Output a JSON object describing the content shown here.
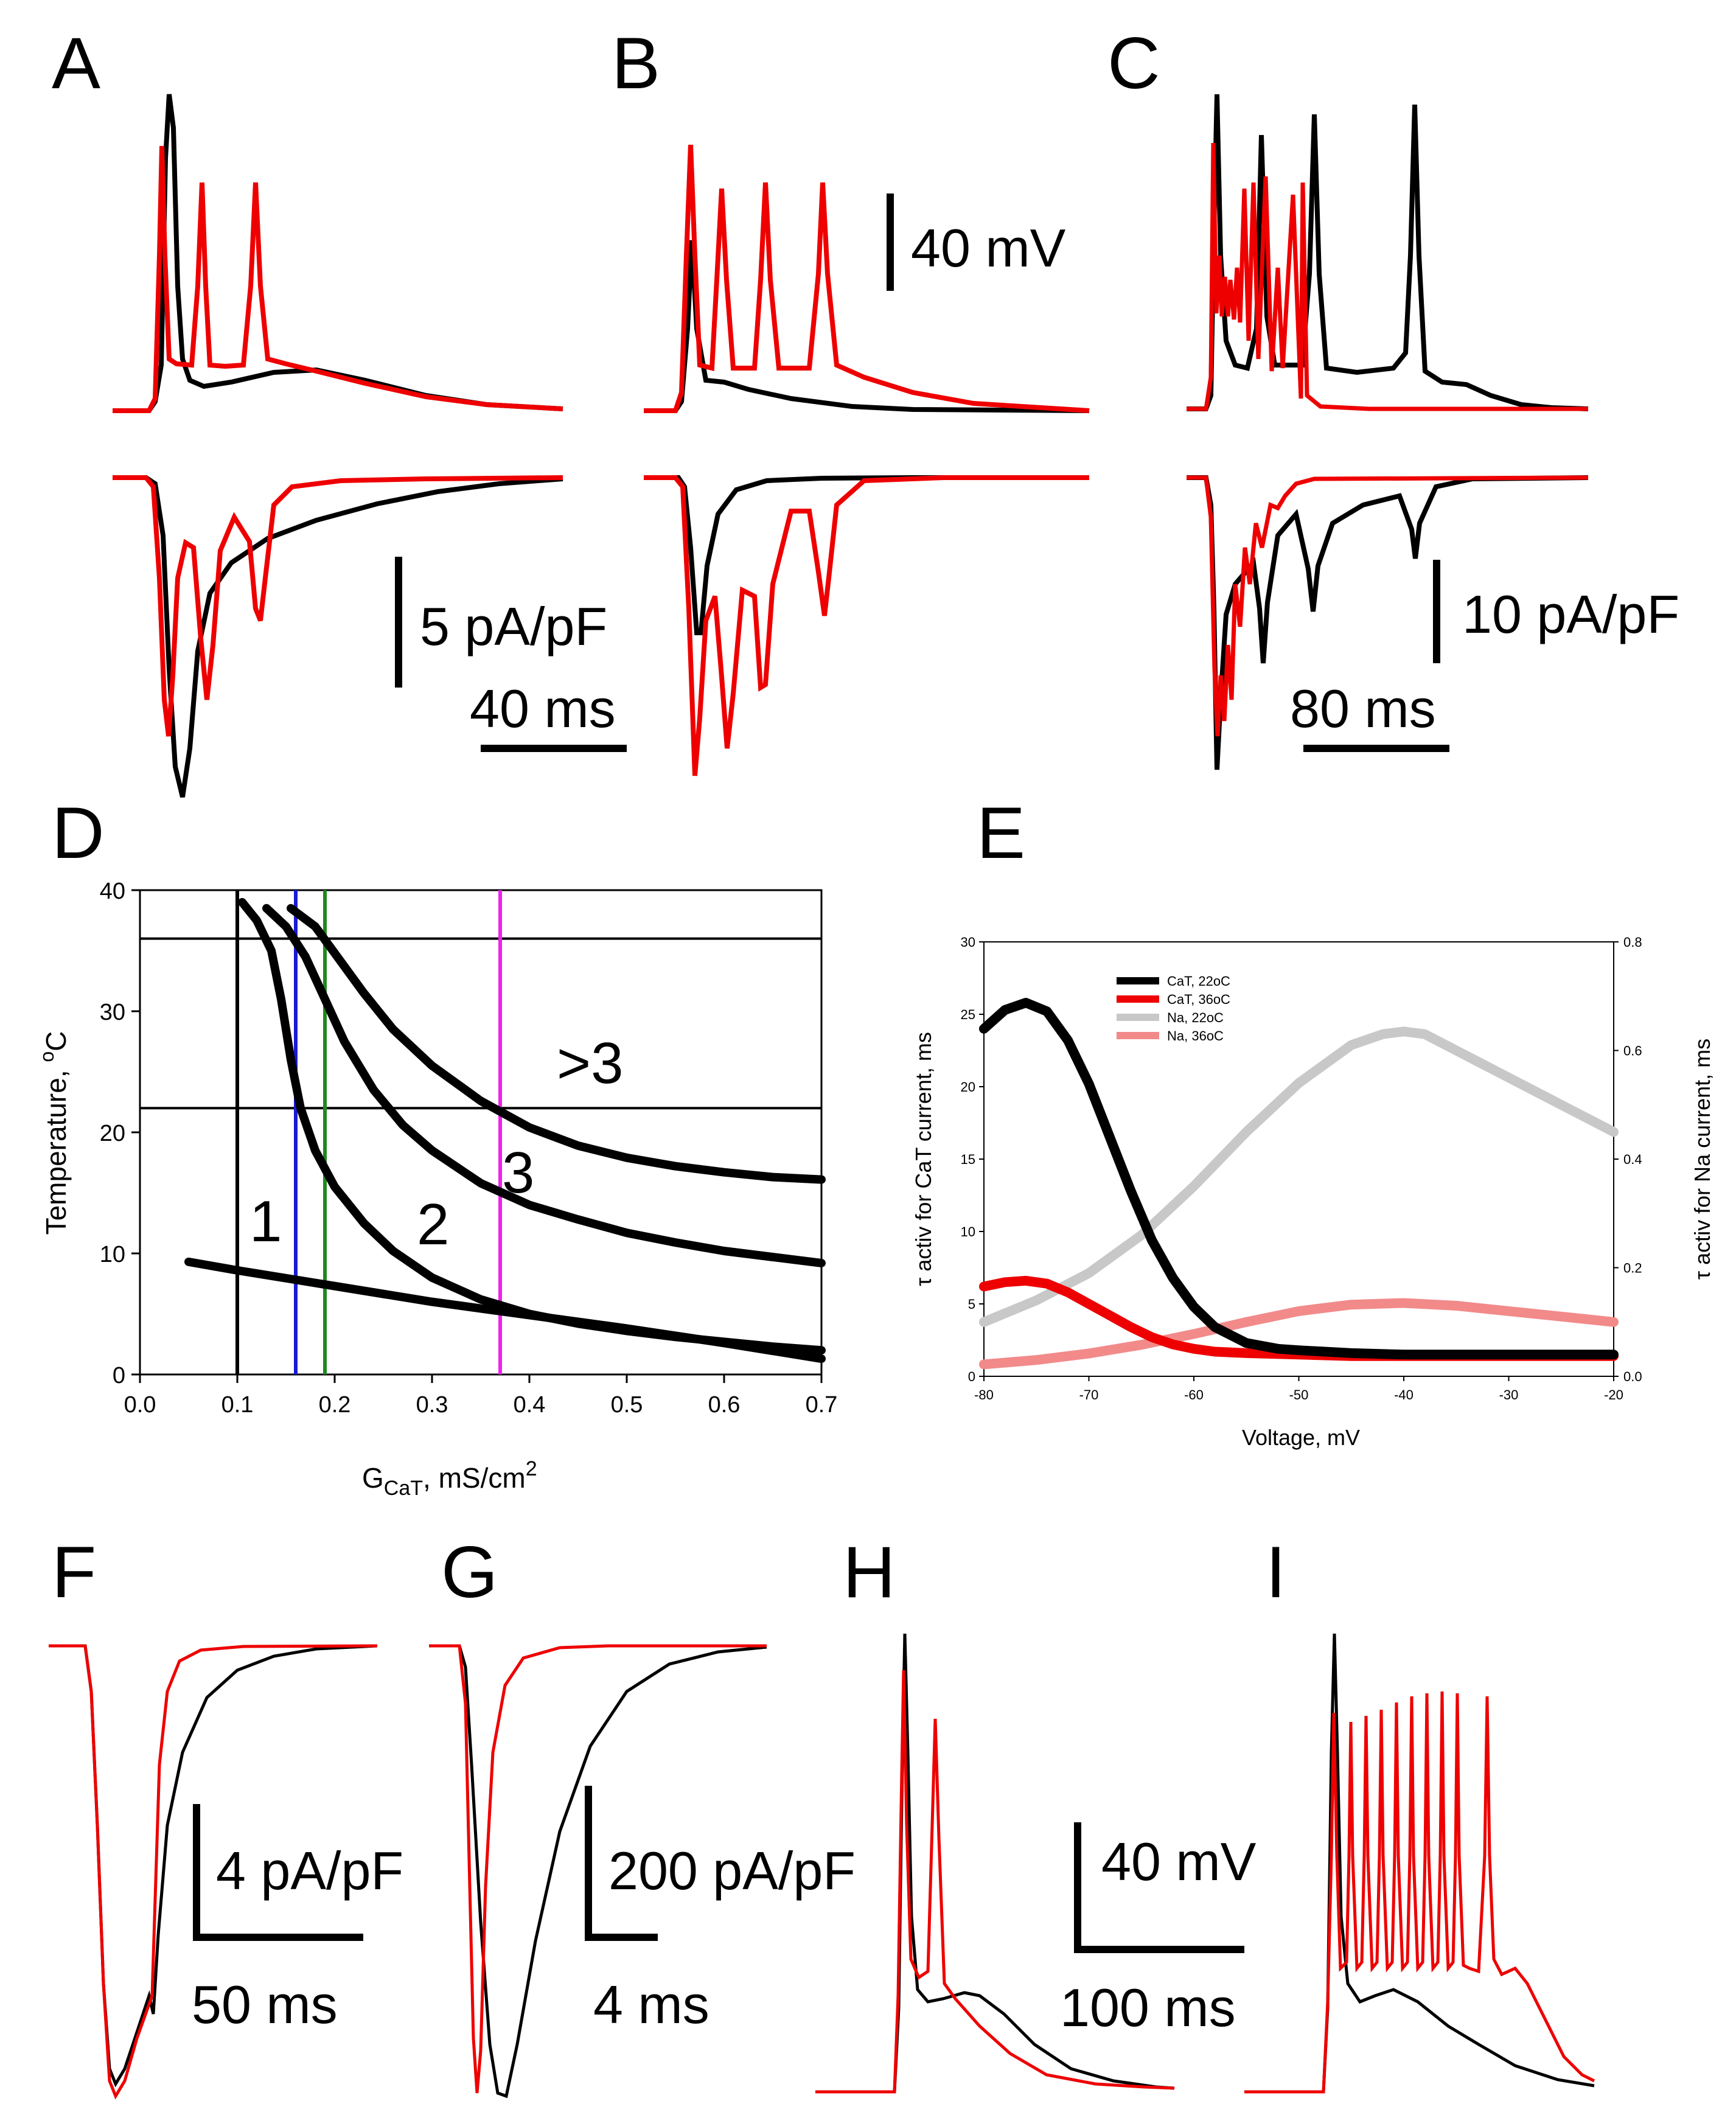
{
  "colors": {
    "control": "#000000",
    "warm": "#ee0000",
    "blue_line": "#1a1ad6",
    "green_line": "#1d8a1d",
    "magenta_line": "#ee22ee",
    "na22": "#c8c8c8",
    "na36": "#f28a8a"
  },
  "panels": {
    "A": {
      "label": "A",
      "current_scale": "5 pA/pF",
      "time_scale": "40 ms"
    },
    "B": {
      "label": "B",
      "voltage_scale": "40 mV"
    },
    "C": {
      "label": "C",
      "current_scale": "10 pA/pF",
      "time_scale": "80 ms"
    },
    "F": {
      "label": "F",
      "current_scale": "4 pA/pF",
      "time_scale": "50 ms"
    },
    "G": {
      "label": "G",
      "current_scale": "200 pA/pF",
      "time_scale": "4 ms"
    },
    "H": {
      "label": "H",
      "voltage_scale": "40 mV",
      "time_scale": "100 ms"
    },
    "I": {
      "label": "I"
    }
  },
  "chart_data": [
    {
      "panel": "D",
      "label": "D",
      "type": "line",
      "xlabel_main": "G",
      "xlabel_sub": "CaT",
      "xlabel_rest": ", mS/cm",
      "xlabel_sup": "2",
      "ylabel_main": "Temperature, ",
      "ylabel_sup": "o",
      "ylabel_rest": "C",
      "xlim": [
        0.0,
        0.7
      ],
      "ylim": [
        0,
        40
      ],
      "xticks": [
        "0.0",
        "0.1",
        "0.2",
        "0.3",
        "0.4",
        "0.5",
        "0.6",
        "0.7"
      ],
      "yticks": [
        "0",
        "10",
        "20",
        "30",
        "40"
      ],
      "region_labels": [
        "1",
        "2",
        "3",
        ">3"
      ],
      "horizontal_lines": [
        36,
        22
      ],
      "vertical_lines": [
        0.1,
        0.16,
        0.19,
        0.37
      ],
      "boundaries": [
        {
          "name": "lower boundary",
          "x": [
            0.05,
            0.1,
            0.2,
            0.3,
            0.4,
            0.5,
            0.6,
            0.7
          ],
          "y": [
            9.3,
            8.6,
            7.3,
            6.0,
            4.9,
            3.8,
            2.6,
            1.3
          ]
        },
        {
          "name": "1-2 boundary",
          "x": [
            0.105,
            0.12,
            0.135,
            0.145,
            0.155,
            0.165,
            0.18,
            0.2,
            0.23,
            0.26,
            0.3,
            0.35,
            0.4,
            0.45,
            0.5,
            0.55,
            0.6,
            0.65,
            0.7
          ],
          "y": [
            39,
            37.5,
            35,
            31,
            26,
            22,
            18.5,
            15.5,
            12.5,
            10.2,
            8.0,
            6.2,
            5.0,
            4.2,
            3.6,
            3.1,
            2.7,
            2.3,
            2.0
          ]
        },
        {
          "name": "2-3 boundary",
          "x": [
            0.13,
            0.15,
            0.17,
            0.19,
            0.21,
            0.24,
            0.27,
            0.3,
            0.35,
            0.4,
            0.45,
            0.5,
            0.55,
            0.6,
            0.65,
            0.7
          ],
          "y": [
            38.5,
            37,
            34.5,
            31,
            27.5,
            23.5,
            20.6,
            18.5,
            15.8,
            14.0,
            12.8,
            11.7,
            10.9,
            10.2,
            9.7,
            9.2
          ]
        },
        {
          "name": "3->3 boundary",
          "x": [
            0.155,
            0.18,
            0.2,
            0.23,
            0.26,
            0.3,
            0.35,
            0.4,
            0.45,
            0.5,
            0.55,
            0.6,
            0.65,
            0.7
          ],
          "y": [
            38.5,
            37,
            34.8,
            31.5,
            28.5,
            25.5,
            22.6,
            20.4,
            18.9,
            17.9,
            17.2,
            16.7,
            16.3,
            16.1
          ]
        }
      ]
    },
    {
      "panel": "E",
      "label": "E",
      "type": "line",
      "xlabel": "Voltage, mV",
      "ylabel_left": "τ activ for CaT current, ms",
      "ylabel_right": "τ activ for Na current, ms",
      "xlim": [
        -80,
        -20
      ],
      "ylim_left": [
        0,
        30
      ],
      "ylim_right": [
        0,
        0.8
      ],
      "xticks": [
        "-80",
        "-70",
        "-60",
        "-50",
        "-40",
        "-30",
        "-20"
      ],
      "yticks_left": [
        "0",
        "5",
        "10",
        "15",
        "20",
        "25",
        "30"
      ],
      "yticks_right": [
        "0.0",
        "0.2",
        "0.4",
        "0.6",
        "0.8"
      ],
      "series": [
        {
          "name": "CaT, 22oC",
          "axis": "left",
          "x": [
            -80,
            -78,
            -76,
            -74,
            -72,
            -70,
            -68,
            -66,
            -64,
            -62,
            -60,
            -58,
            -55,
            -52,
            -50,
            -45,
            -40,
            -35,
            -30,
            -25,
            -20
          ],
          "y": [
            24,
            25.3,
            25.8,
            25.2,
            23.2,
            20.2,
            16.5,
            12.8,
            9.4,
            6.8,
            4.8,
            3.4,
            2.3,
            1.9,
            1.8,
            1.6,
            1.5,
            1.5,
            1.5,
            1.5,
            1.5
          ]
        },
        {
          "name": "CaT, 36oC",
          "axis": "left",
          "x": [
            -80,
            -78,
            -76,
            -74,
            -72,
            -70,
            -68,
            -66,
            -64,
            -62,
            -60,
            -58,
            -55,
            -50,
            -45,
            -40,
            -30,
            -20
          ],
          "y": [
            6.2,
            6.5,
            6.6,
            6.4,
            5.8,
            5.0,
            4.2,
            3.4,
            2.7,
            2.2,
            1.9,
            1.7,
            1.6,
            1.5,
            1.4,
            1.4,
            1.4,
            1.4
          ]
        },
        {
          "name": "Na, 22oC",
          "axis": "right",
          "x": [
            -80,
            -75,
            -70,
            -65,
            -60,
            -55,
            -50,
            -45,
            -42,
            -40,
            -38,
            -35,
            -30,
            -25,
            -20
          ],
          "y": [
            0.1,
            0.14,
            0.19,
            0.26,
            0.35,
            0.45,
            0.54,
            0.61,
            0.63,
            0.635,
            0.63,
            0.6,
            0.55,
            0.5,
            0.45
          ]
        },
        {
          "name": "Na, 36oC",
          "axis": "right",
          "x": [
            -80,
            -75,
            -70,
            -65,
            -60,
            -55,
            -50,
            -45,
            -40,
            -35,
            -30,
            -25,
            -20
          ],
          "y": [
            0.022,
            0.03,
            0.042,
            0.058,
            0.078,
            0.1,
            0.12,
            0.132,
            0.135,
            0.13,
            0.12,
            0.11,
            0.1
          ]
        }
      ]
    }
  ]
}
